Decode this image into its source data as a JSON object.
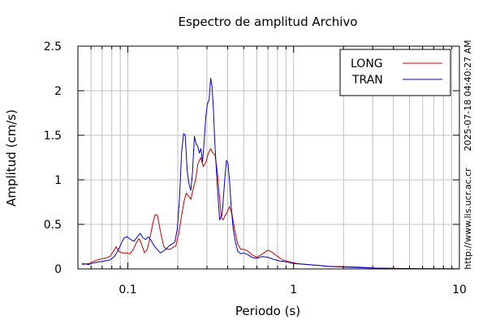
{
  "chart_data": {
    "type": "line",
    "title": "Espectro de amplitud Archivo",
    "xlabel": "Periodo (s)",
    "ylabel": "Amplitud (cm/s)",
    "x_scale": "log",
    "xlim": [
      0.05,
      10
    ],
    "ylim": [
      0,
      2.5
    ],
    "x_ticks": [
      {
        "value": 0.1,
        "label": "0.1"
      },
      {
        "value": 1,
        "label": "1"
      },
      {
        "value": 10,
        "label": "10"
      }
    ],
    "y_ticks": [
      {
        "value": 0,
        "label": "0"
      },
      {
        "value": 0.5,
        "label": "0.5"
      },
      {
        "value": 1,
        "label": "1"
      },
      {
        "value": 1.5,
        "label": "1.5"
      },
      {
        "value": 2,
        "label": "2"
      },
      {
        "value": 2.5,
        "label": "2.5"
      }
    ],
    "grid": true,
    "legend_position": "top-right",
    "series": [
      {
        "name": "LONG",
        "color": "#cc0000",
        "points": [
          [
            0.053,
            0.05
          ],
          [
            0.058,
            0.06
          ],
          [
            0.063,
            0.09
          ],
          [
            0.068,
            0.11
          ],
          [
            0.073,
            0.12
          ],
          [
            0.078,
            0.14
          ],
          [
            0.082,
            0.2
          ],
          [
            0.085,
            0.25
          ],
          [
            0.088,
            0.2
          ],
          [
            0.092,
            0.18
          ],
          [
            0.097,
            0.18
          ],
          [
            0.103,
            0.17
          ],
          [
            0.108,
            0.22
          ],
          [
            0.113,
            0.3
          ],
          [
            0.117,
            0.34
          ],
          [
            0.121,
            0.28
          ],
          [
            0.126,
            0.18
          ],
          [
            0.131,
            0.22
          ],
          [
            0.136,
            0.35
          ],
          [
            0.141,
            0.5
          ],
          [
            0.146,
            0.61
          ],
          [
            0.151,
            0.6
          ],
          [
            0.158,
            0.4
          ],
          [
            0.165,
            0.25
          ],
          [
            0.172,
            0.22
          ],
          [
            0.18,
            0.22
          ],
          [
            0.187,
            0.24
          ],
          [
            0.195,
            0.26
          ],
          [
            0.203,
            0.4
          ],
          [
            0.211,
            0.6
          ],
          [
            0.218,
            0.75
          ],
          [
            0.225,
            0.85
          ],
          [
            0.232,
            0.82
          ],
          [
            0.24,
            0.78
          ],
          [
            0.248,
            0.9
          ],
          [
            0.256,
            1.0
          ],
          [
            0.265,
            1.18
          ],
          [
            0.275,
            1.25
          ],
          [
            0.285,
            1.15
          ],
          [
            0.296,
            1.2
          ],
          [
            0.306,
            1.3
          ],
          [
            0.316,
            1.35
          ],
          [
            0.326,
            1.3
          ],
          [
            0.336,
            1.28
          ],
          [
            0.346,
            1.1
          ],
          [
            0.356,
            0.85
          ],
          [
            0.366,
            0.58
          ],
          [
            0.376,
            0.55
          ],
          [
            0.386,
            0.6
          ],
          [
            0.396,
            0.63
          ],
          [
            0.41,
            0.7
          ],
          [
            0.425,
            0.62
          ],
          [
            0.44,
            0.45
          ],
          [
            0.46,
            0.28
          ],
          [
            0.48,
            0.22
          ],
          [
            0.5,
            0.22
          ],
          [
            0.53,
            0.2
          ],
          [
            0.56,
            0.16
          ],
          [
            0.6,
            0.13
          ],
          [
            0.65,
            0.17
          ],
          [
            0.7,
            0.21
          ],
          [
            0.74,
            0.19
          ],
          [
            0.8,
            0.14
          ],
          [
            0.86,
            0.1
          ],
          [
            0.95,
            0.08
          ],
          [
            1.05,
            0.06
          ],
          [
            1.2,
            0.05
          ],
          [
            1.4,
            0.04
          ],
          [
            1.6,
            0.03
          ],
          [
            2.0,
            0.025
          ],
          [
            2.5,
            0.02
          ],
          [
            3.0,
            0.01
          ],
          [
            4.0,
            0.005
          ],
          [
            6.0,
            0.003
          ],
          [
            10.0,
            0.001
          ]
        ]
      },
      {
        "name": "TRAN",
        "color": "#0000cc",
        "points": [
          [
            0.053,
            0.06
          ],
          [
            0.058,
            0.05
          ],
          [
            0.063,
            0.07
          ],
          [
            0.068,
            0.08
          ],
          [
            0.073,
            0.09
          ],
          [
            0.078,
            0.1
          ],
          [
            0.083,
            0.14
          ],
          [
            0.087,
            0.2
          ],
          [
            0.091,
            0.28
          ],
          [
            0.095,
            0.35
          ],
          [
            0.099,
            0.36
          ],
          [
            0.104,
            0.33
          ],
          [
            0.109,
            0.31
          ],
          [
            0.114,
            0.36
          ],
          [
            0.119,
            0.4
          ],
          [
            0.123,
            0.35
          ],
          [
            0.128,
            0.33
          ],
          [
            0.133,
            0.36
          ],
          [
            0.138,
            0.32
          ],
          [
            0.144,
            0.26
          ],
          [
            0.15,
            0.22
          ],
          [
            0.157,
            0.18
          ],
          [
            0.164,
            0.2
          ],
          [
            0.171,
            0.23
          ],
          [
            0.178,
            0.26
          ],
          [
            0.185,
            0.28
          ],
          [
            0.192,
            0.3
          ],
          [
            0.199,
            0.45
          ],
          [
            0.205,
            0.8
          ],
          [
            0.211,
            1.3
          ],
          [
            0.217,
            1.52
          ],
          [
            0.222,
            1.5
          ],
          [
            0.228,
            1.1
          ],
          [
            0.234,
            0.95
          ],
          [
            0.24,
            0.88
          ],
          [
            0.246,
            1.1
          ],
          [
            0.252,
            1.49
          ],
          [
            0.258,
            1.4
          ],
          [
            0.264,
            1.38
          ],
          [
            0.27,
            1.3
          ],
          [
            0.276,
            1.35
          ],
          [
            0.282,
            1.2
          ],
          [
            0.288,
            1.4
          ],
          [
            0.295,
            1.7
          ],
          [
            0.302,
            1.85
          ],
          [
            0.309,
            1.9
          ],
          [
            0.316,
            2.14
          ],
          [
            0.322,
            2.05
          ],
          [
            0.328,
            1.8
          ],
          [
            0.334,
            1.45
          ],
          [
            0.34,
            1.2
          ],
          [
            0.346,
            0.95
          ],
          [
            0.352,
            0.75
          ],
          [
            0.358,
            0.55
          ],
          [
            0.364,
            0.58
          ],
          [
            0.37,
            0.6
          ],
          [
            0.378,
            0.82
          ],
          [
            0.386,
            1.05
          ],
          [
            0.394,
            1.22
          ],
          [
            0.402,
            1.18
          ],
          [
            0.41,
            1.0
          ],
          [
            0.42,
            0.7
          ],
          [
            0.432,
            0.45
          ],
          [
            0.446,
            0.3
          ],
          [
            0.46,
            0.2
          ],
          [
            0.48,
            0.17
          ],
          [
            0.5,
            0.18
          ],
          [
            0.53,
            0.16
          ],
          [
            0.56,
            0.13
          ],
          [
            0.6,
            0.12
          ],
          [
            0.65,
            0.14
          ],
          [
            0.7,
            0.13
          ],
          [
            0.75,
            0.11
          ],
          [
            0.82,
            0.09
          ],
          [
            0.9,
            0.08
          ],
          [
            1.0,
            0.06
          ],
          [
            1.2,
            0.05
          ],
          [
            1.4,
            0.04
          ],
          [
            1.6,
            0.03
          ],
          [
            2.0,
            0.02
          ],
          [
            2.5,
            0.015
          ],
          [
            3.0,
            0.01
          ],
          [
            4.0,
            0.005
          ],
          [
            6.0,
            0.003
          ],
          [
            10.0,
            0.001
          ]
        ]
      }
    ]
  },
  "side_labels": {
    "timestamp": "2025-07-18 04:40:27 AM",
    "url": "http://www.lis.ucr.ac.cr"
  }
}
